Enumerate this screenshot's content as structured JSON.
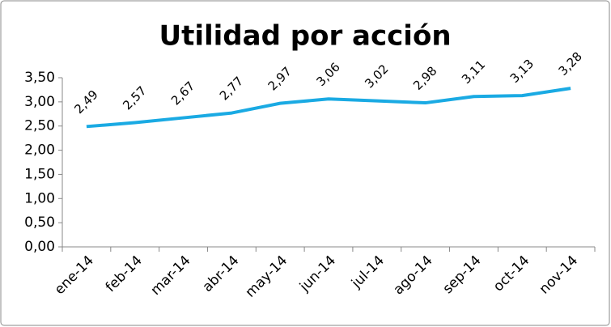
{
  "chart_data": {
    "type": "line",
    "title": "Utilidad por acción",
    "categories": [
      "ene-14",
      "feb-14",
      "mar-14",
      "abr-14",
      "may-14",
      "jun-14",
      "jul-14",
      "ago-14",
      "sep-14",
      "oct-14",
      "nov-14"
    ],
    "values": [
      2.49,
      2.57,
      2.67,
      2.77,
      2.97,
      3.06,
      3.02,
      2.98,
      3.11,
      3.13,
      3.28
    ],
    "value_labels": [
      "2,49",
      "2,57",
      "2,67",
      "2,77",
      "2,97",
      "3,06",
      "3,02",
      "2,98",
      "3,11",
      "3,13",
      "3,28"
    ],
    "color": "#1aaae3",
    "ylim": [
      0,
      3.5
    ],
    "yticks": [
      {
        "value": 0,
        "label": "0,00"
      },
      {
        "value": 0.5,
        "label": "0,50"
      },
      {
        "value": 1,
        "label": "1,00"
      },
      {
        "value": 1.5,
        "label": "1,50"
      },
      {
        "value": 2,
        "label": "2,00"
      },
      {
        "value": 2.5,
        "label": "2,50"
      },
      {
        "value": 3,
        "label": "3,00"
      },
      {
        "value": 3.5,
        "label": "3,50"
      }
    ],
    "grid": false
  }
}
